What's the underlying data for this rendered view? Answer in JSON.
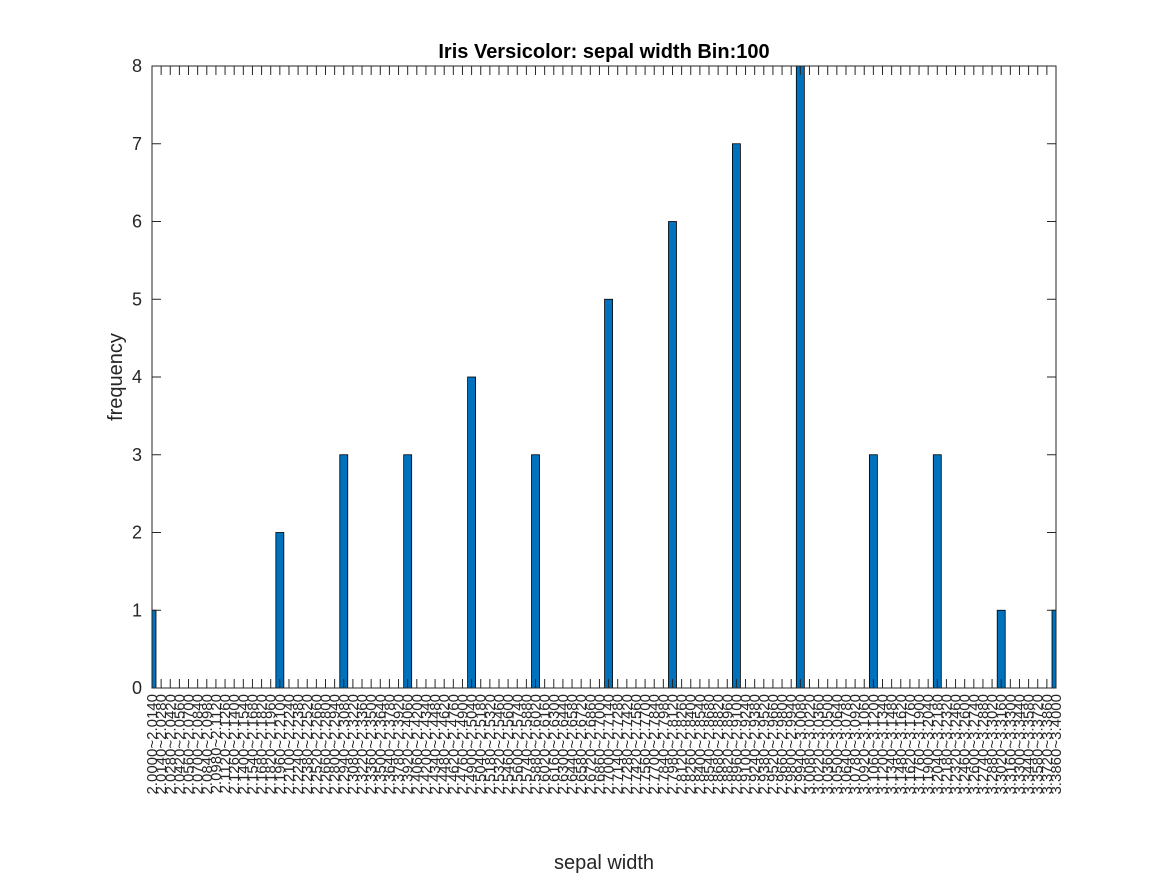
{
  "chart_data": {
    "type": "bar",
    "title": "Iris Versicolor: sepal width Bin:100",
    "xlabel": "sepal width",
    "ylabel": "frequency",
    "ylim": [
      0,
      8
    ],
    "yticks": [
      0,
      1,
      2,
      3,
      4,
      5,
      6,
      7,
      8
    ],
    "bin_start": 2.0,
    "bin_width": 0.014,
    "bar_color": "#0072bd",
    "bar_edge_color": "#000000",
    "categories": [
      "2.0000~2.0140",
      "2.0140~2.0280",
      "2.0280~2.0420",
      "2.0420~2.0560",
      "2.0560~2.0700",
      "2.0700~2.0840",
      "2.0840~2.0980",
      "2.0980~2.1120",
      "2.1120~2.1260",
      "2.1260~2.1400",
      "2.1400~2.1540",
      "2.1540~2.1680",
      "2.1680~2.1820",
      "2.1820~2.1960",
      "2.1960~2.2100",
      "2.2100~2.2240",
      "2.2240~2.2380",
      "2.2380~2.2520",
      "2.2520~2.2660",
      "2.2660~2.2800",
      "2.2800~2.2940",
      "2.2940~2.3080",
      "2.3080~2.3220",
      "2.3220~2.3360",
      "2.3360~2.3500",
      "2.3500~2.3640",
      "2.3640~2.3780",
      "2.3780~2.3920",
      "2.3920~2.4060",
      "2.4060~2.4200",
      "2.4200~2.4340",
      "2.4340~2.4480",
      "2.4480~2.4620",
      "2.4620~2.4760",
      "2.4760~2.4900",
      "2.4900~2.5040",
      "2.5040~2.5180",
      "2.5180~2.5320",
      "2.5320~2.5460",
      "2.5460~2.5600",
      "2.5600~2.5740",
      "2.5740~2.5880",
      "2.5880~2.6020",
      "2.6020~2.6160",
      "2.6160~2.6300",
      "2.6300~2.6440",
      "2.6440~2.6580",
      "2.6580~2.6720",
      "2.6720~2.6860",
      "2.6860~2.7000",
      "2.7000~2.7140",
      "2.7140~2.7280",
      "2.7280~2.7420",
      "2.7420~2.7560",
      "2.7560~2.7700",
      "2.7700~2.7840",
      "2.7840~2.7980",
      "2.7980~2.8120",
      "2.8120~2.8260",
      "2.8260~2.8400",
      "2.8400~2.8540",
      "2.8540~2.8680",
      "2.8680~2.8820",
      "2.8820~2.8960",
      "2.8960~2.9100",
      "2.9100~2.9240",
      "2.9240~2.9380",
      "2.9380~2.9520",
      "2.9520~2.9660",
      "2.9660~2.9800",
      "2.9800~2.9940",
      "2.9940~3.0080",
      "3.0080~3.0220",
      "3.0220~3.0360",
      "3.0360~3.0500",
      "3.0500~3.0640",
      "3.0640~3.0780",
      "3.0780~3.0920",
      "3.0920~3.1060",
      "3.1060~3.1200",
      "3.1200~3.1340",
      "3.1340~3.1480",
      "3.1480~3.1620",
      "3.1620~3.1760",
      "3.1760~3.1900",
      "3.1900~3.2040",
      "3.2040~3.2180",
      "3.2180~3.2320",
      "3.2320~3.2460",
      "3.2460~3.2600",
      "3.2600~3.2740",
      "3.2740~3.2880",
      "3.2880~3.3020",
      "3.3020~3.3160",
      "3.3160~3.3300",
      "3.3300~3.3440",
      "3.3440~3.3580",
      "3.3580~3.3720",
      "3.3720~3.3860",
      "3.3860~3.4000"
    ],
    "values": [
      1,
      0,
      0,
      0,
      0,
      0,
      0,
      0,
      0,
      0,
      0,
      0,
      0,
      0,
      2,
      0,
      0,
      0,
      0,
      0,
      0,
      3,
      0,
      0,
      0,
      0,
      0,
      0,
      3,
      0,
      0,
      0,
      0,
      0,
      0,
      4,
      0,
      0,
      0,
      0,
      0,
      0,
      3,
      0,
      0,
      0,
      0,
      0,
      0,
      0,
      5,
      0,
      0,
      0,
      0,
      0,
      0,
      6,
      0,
      0,
      0,
      0,
      0,
      0,
      7,
      0,
      0,
      0,
      0,
      0,
      0,
      8,
      0,
      0,
      0,
      0,
      0,
      0,
      0,
      3,
      0,
      0,
      0,
      0,
      0,
      0,
      3,
      0,
      0,
      0,
      0,
      0,
      0,
      1,
      0,
      0,
      0,
      0,
      0,
      1
    ],
    "grid": false,
    "legend": "none"
  }
}
